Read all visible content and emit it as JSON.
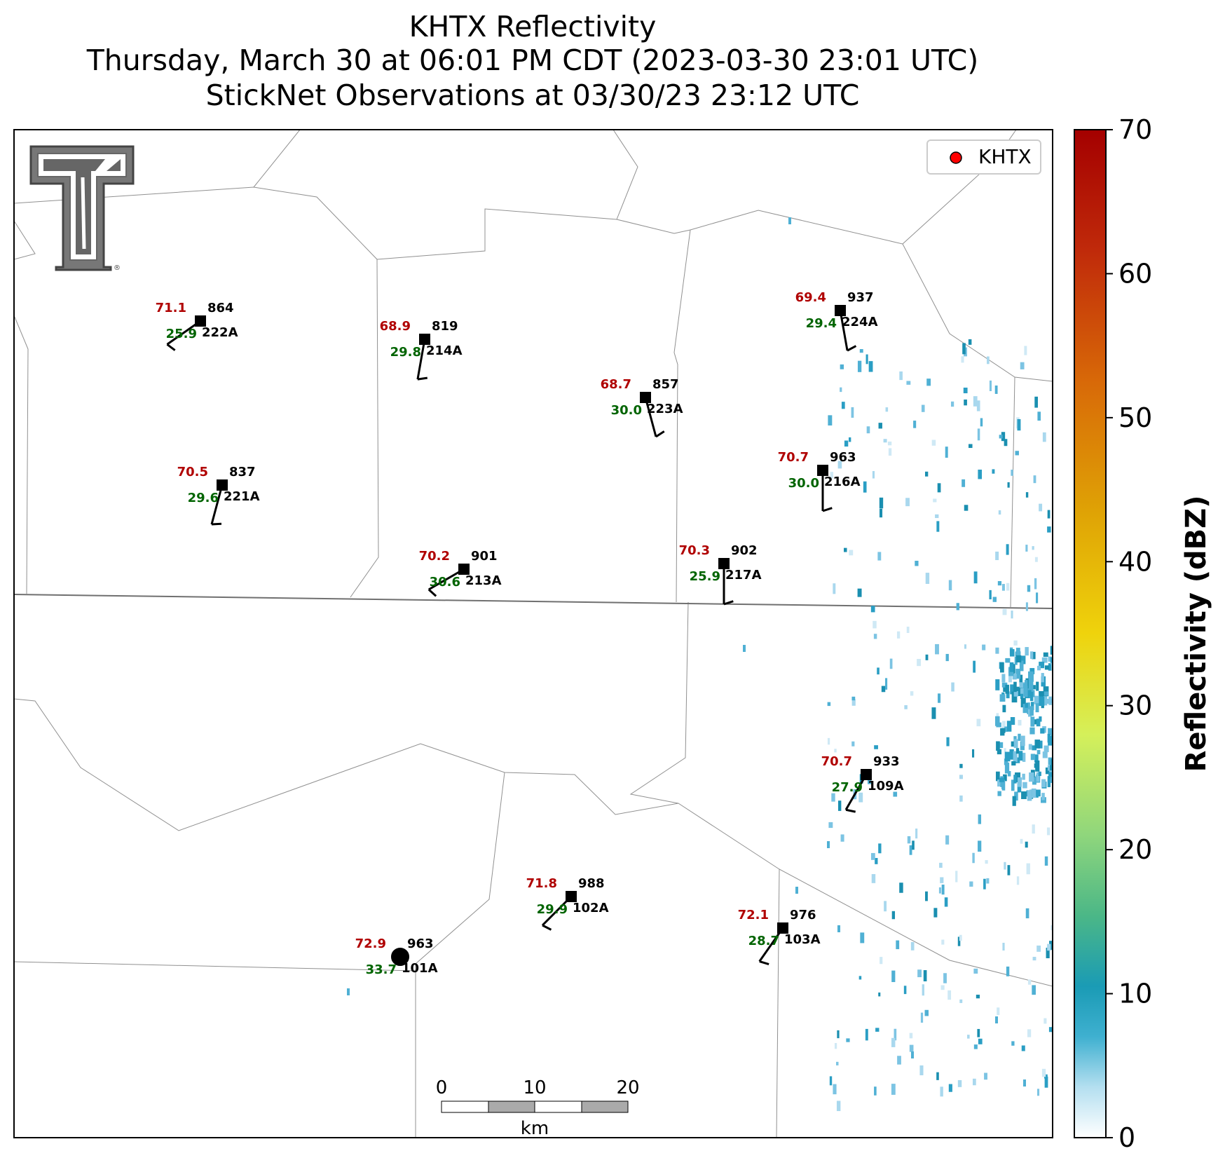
{
  "title": {
    "line1": "KHTX Reflectivity",
    "line2": "Thursday, March 30 at 06:01 PM CDT (2023-03-30 23:01 UTC)",
    "line3": "StickNet Observations at 03/30/23 23:12 UTC"
  },
  "legend": {
    "label": "KHTX",
    "marker_color": "#ff0000"
  },
  "colorbar": {
    "label": "Reflectivity (dBZ)",
    "min": 0,
    "max": 70,
    "ticks": [
      "0",
      "10",
      "20",
      "30",
      "40",
      "50",
      "60",
      "70"
    ],
    "colors": [
      "#ffffff",
      "#7fc7e3",
      "#1a9bb5",
      "#5fc27e",
      "#9fdc80",
      "#e8f558",
      "#e9c21a",
      "#e08a0a",
      "#cc3d0a",
      "#a80000"
    ]
  },
  "scale_bar": {
    "unit": "km",
    "labels": [
      "0",
      "10",
      "20"
    ]
  },
  "logo": {
    "name": "Texas Tech double-T logo"
  },
  "stations": [
    {
      "id": "222A",
      "temp": "71.1",
      "dew": "25.9",
      "pressure": "864",
      "wind_dir_deg": 305,
      "wind_barbs": 1
    },
    {
      "id": "214A",
      "temp": "68.9",
      "dew": "29.8",
      "pressure": "819",
      "wind_dir_deg": 350,
      "wind_barbs": 1
    },
    {
      "id": "223A",
      "temp": "68.7",
      "dew": "30.0",
      "pressure": "857",
      "wind_dir_deg": 15,
      "wind_barbs": 1
    },
    {
      "id": "224A",
      "temp": "69.4",
      "dew": "29.4",
      "pressure": "937",
      "wind_dir_deg": 10,
      "wind_barbs": 1
    },
    {
      "id": "221A",
      "temp": "70.5",
      "dew": "29.6",
      "pressure": "837",
      "wind_dir_deg": 345,
      "wind_barbs": 1
    },
    {
      "id": "216A",
      "temp": "70.7",
      "dew": "30.0",
      "pressure": "963",
      "wind_dir_deg": 0,
      "wind_barbs": 1
    },
    {
      "id": "213A",
      "temp": "70.2",
      "dew": "30.6",
      "pressure": "901",
      "wind_dir_deg": 300,
      "wind_barbs": 1
    },
    {
      "id": "217A",
      "temp": "70.3",
      "dew": "25.9",
      "pressure": "902",
      "wind_dir_deg": 0,
      "wind_barbs": 1
    },
    {
      "id": "109A",
      "temp": "70.7",
      "dew": "27.9",
      "pressure": "933",
      "wind_dir_deg": 330,
      "wind_barbs": 1
    },
    {
      "id": "102A",
      "temp": "71.8",
      "dew": "29.9",
      "pressure": "988",
      "wind_dir_deg": 315,
      "wind_barbs": 1
    },
    {
      "id": "103A",
      "temp": "72.1",
      "dew": "28.7",
      "pressure": "976",
      "wind_dir_deg": 325,
      "wind_barbs": 1
    },
    {
      "id": "101A",
      "temp": "72.9",
      "dew": "33.7",
      "pressure": "963",
      "wind_dir_deg": null,
      "wind_barbs": 0
    }
  ]
}
